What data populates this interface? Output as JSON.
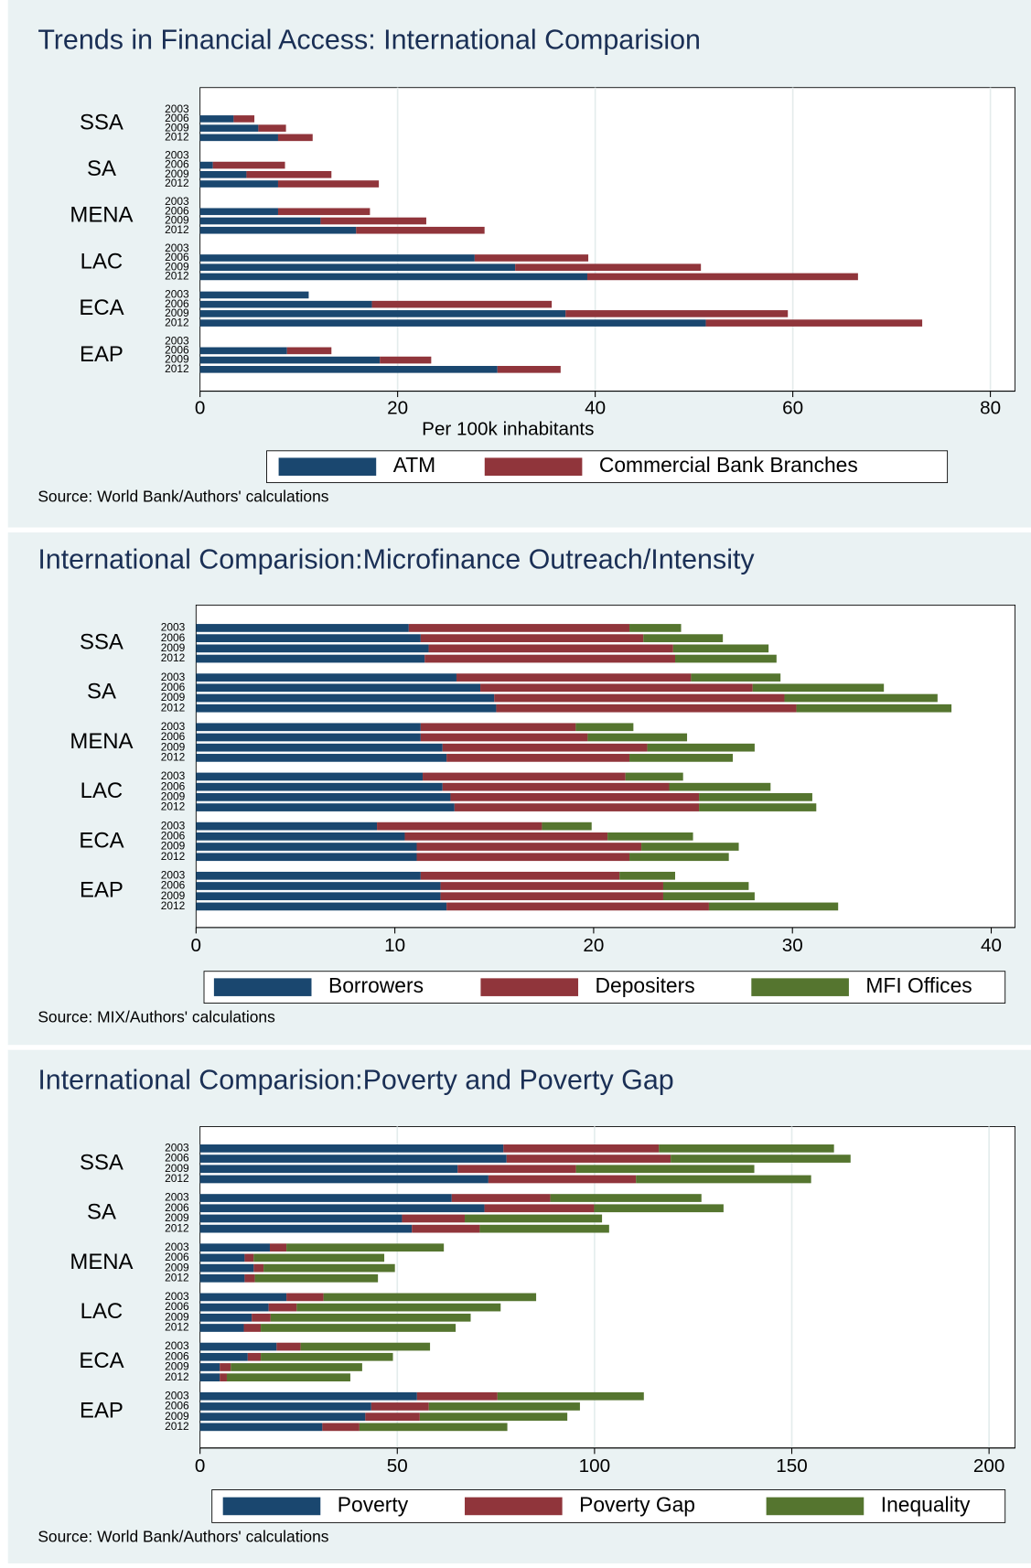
{
  "chart_data": [
    {
      "type": "bar",
      "orientation": "horizontal",
      "stacked": true,
      "title": "Trends in Financial Access: International Comparision",
      "xlabel": "Per 100k inhabitants",
      "note": "Source: World Bank/Authors' calculations",
      "groups": [
        "SSA",
        "SA",
        "MENA",
        "LAC",
        "ECA",
        "EAP"
      ],
      "categories": [
        "2003",
        "2006",
        "2009",
        "2012",
        "2003",
        "2006",
        "2009",
        "2012",
        "2003",
        "2006",
        "2009",
        "2012",
        "2003",
        "2006",
        "2009",
        "2012",
        "2003",
        "2006",
        "2009",
        "2012",
        "2003",
        "2006",
        "2009",
        "2012"
      ],
      "series": [
        {
          "name": "ATM",
          "color": "#1a476f",
          "values": [
            null,
            3.4,
            5.9,
            7.9,
            null,
            1.3,
            4.7,
            7.9,
            null,
            7.9,
            12.2,
            15.8,
            null,
            27.8,
            31.9,
            39.2,
            11.0,
            17.4,
            37.0,
            51.2,
            null,
            8.8,
            18.2,
            30.1
          ]
        },
        {
          "name": "Commercial Bank Branches",
          "color": "#90353b",
          "values": [
            null,
            2.1,
            2.8,
            3.5,
            null,
            7.3,
            8.6,
            10.2,
            null,
            9.3,
            10.7,
            13.0,
            null,
            11.5,
            18.8,
            27.4,
            null,
            18.2,
            22.5,
            21.9,
            null,
            4.5,
            5.2,
            6.4
          ]
        }
      ],
      "xlim": [
        0,
        82.5
      ],
      "xticks": [
        0,
        20,
        40,
        60,
        80
      ],
      "grid": true,
      "legend": "bottom"
    },
    {
      "type": "bar",
      "orientation": "horizontal",
      "stacked": true,
      "title": "International Comparision:Microfinance Outreach/Intensity",
      "note": "Source: MIX/Authors' calculations",
      "groups": [
        "SSA",
        "SA",
        "MENA",
        "LAC",
        "ECA",
        "EAP"
      ],
      "categories": [
        "2003",
        "2006",
        "2009",
        "2012",
        "2003",
        "2006",
        "2009",
        "2012",
        "2003",
        "2006",
        "2009",
        "2012",
        "2003",
        "2006",
        "2009",
        "2012",
        "2003",
        "2006",
        "2009",
        "2012",
        "2003",
        "2006",
        "2009",
        "2012"
      ],
      "series": [
        {
          "name": "Borrowers",
          "color": "#1a476f",
          "values": [
            10.7,
            11.3,
            11.7,
            11.5,
            13.1,
            14.3,
            15.0,
            15.1,
            11.3,
            11.3,
            12.4,
            12.6,
            11.4,
            12.4,
            12.8,
            13.0,
            9.1,
            10.5,
            11.1,
            11.1,
            11.3,
            12.3,
            12.3,
            12.6
          ]
        },
        {
          "name": "Depositers",
          "color": "#90353b",
          "values": [
            11.1,
            11.2,
            12.3,
            12.6,
            11.8,
            13.7,
            14.6,
            15.1,
            7.8,
            8.4,
            10.3,
            9.2,
            10.2,
            11.4,
            12.5,
            12.3,
            8.3,
            10.2,
            11.3,
            10.7,
            10.0,
            11.2,
            11.2,
            13.2
          ]
        },
        {
          "name": "MFI Offices",
          "color": "#55752f",
          "values": [
            2.6,
            4.0,
            4.8,
            5.1,
            4.5,
            6.6,
            7.7,
            7.8,
            2.9,
            5.0,
            5.4,
            5.2,
            2.9,
            5.1,
            5.7,
            5.9,
            2.5,
            4.3,
            4.9,
            5.0,
            2.8,
            4.3,
            4.6,
            6.5
          ]
        }
      ],
      "xlim": [
        0,
        41.2
      ],
      "xticks": [
        0,
        10,
        20,
        30,
        40
      ],
      "grid": false,
      "legend": "bottom"
    },
    {
      "type": "bar",
      "orientation": "horizontal",
      "stacked": true,
      "title": "International Comparision:Poverty and Poverty Gap",
      "note": "Source: World Bank/Authors' calculations",
      "groups": [
        "SSA",
        "SA",
        "MENA",
        "LAC",
        "ECA",
        "EAP"
      ],
      "categories": [
        "2003",
        "2006",
        "2009",
        "2012",
        "2003",
        "2006",
        "2009",
        "2012",
        "2003",
        "2006",
        "2009",
        "2012",
        "2003",
        "2006",
        "2009",
        "2012",
        "2003",
        "2006",
        "2009",
        "2012",
        "2003",
        "2006",
        "2009",
        "2012"
      ],
      "series": [
        {
          "name": "Poverty",
          "color": "#1a476f",
          "values": [
            76.9,
            77.7,
            65.3,
            73.1,
            63.8,
            72.1,
            51.2,
            53.7,
            17.7,
            11.3,
            13.6,
            11.3,
            21.9,
            17.4,
            13.1,
            11.1,
            19.4,
            12.1,
            5.0,
            5.0,
            55.0,
            43.4,
            41.9,
            31.0
          ]
        },
        {
          "name": "Poverty Gap",
          "color": "#90353b",
          "values": [
            39.4,
            41.6,
            30.0,
            37.4,
            25.0,
            27.8,
            15.9,
            17.2,
            4.2,
            2.3,
            2.5,
            2.6,
            9.4,
            7.1,
            4.8,
            4.3,
            6.1,
            3.3,
            2.8,
            1.8,
            20.4,
            14.6,
            13.8,
            9.4
          ]
        },
        {
          "name": "Inequality",
          "color": "#55752f",
          "values": [
            44.4,
            45.6,
            45.2,
            44.4,
            38.3,
            32.8,
            34.8,
            32.8,
            39.9,
            33.1,
            33.3,
            31.2,
            53.9,
            51.7,
            50.7,
            49.4,
            32.8,
            33.5,
            33.3,
            31.3,
            37.1,
            38.3,
            37.4,
            37.5
          ]
        }
      ],
      "xlim": [
        0,
        206.6
      ],
      "xticks": [
        0,
        50,
        100,
        150,
        200
      ],
      "grid": true,
      "legend": "bottom"
    }
  ]
}
